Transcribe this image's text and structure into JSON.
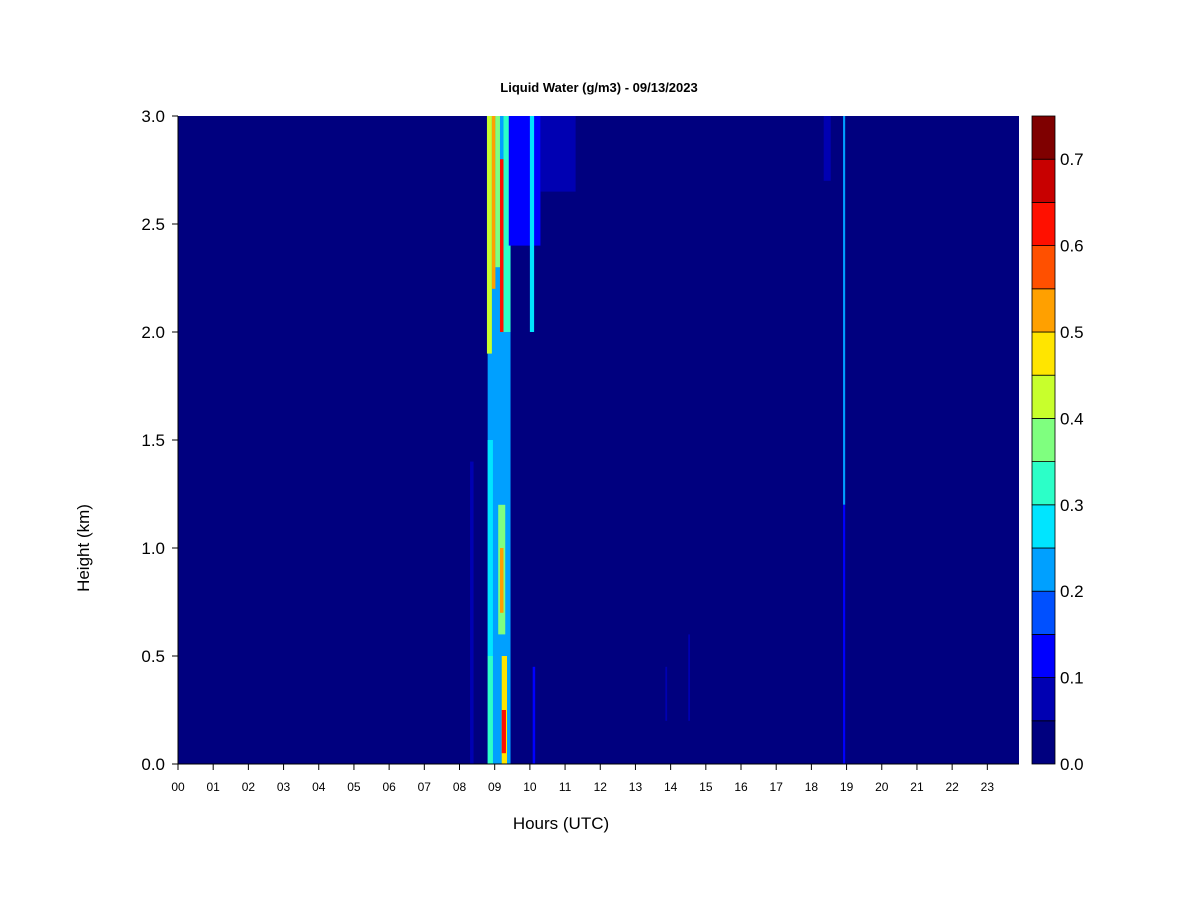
{
  "chart_data": {
    "type": "heatmap",
    "title": "Liquid Water (g/m3) - 09/13/2023",
    "xlabel": "Hours (UTC)",
    "ylabel": "Height (km)",
    "xlim": [
      0,
      23.9
    ],
    "ylim": [
      0,
      3.0
    ],
    "x_ticks": [
      {
        "value": 0,
        "label": "00"
      },
      {
        "value": 1,
        "label": "01"
      },
      {
        "value": 2,
        "label": "02"
      },
      {
        "value": 3,
        "label": "03"
      },
      {
        "value": 4,
        "label": "04"
      },
      {
        "value": 5,
        "label": "05"
      },
      {
        "value": 6,
        "label": "06"
      },
      {
        "value": 7,
        "label": "07"
      },
      {
        "value": 8,
        "label": "08"
      },
      {
        "value": 9,
        "label": "09"
      },
      {
        "value": 10,
        "label": "10"
      },
      {
        "value": 11,
        "label": "11"
      },
      {
        "value": 12,
        "label": "12"
      },
      {
        "value": 13,
        "label": "13"
      },
      {
        "value": 14,
        "label": "14"
      },
      {
        "value": 15,
        "label": "15"
      },
      {
        "value": 16,
        "label": "16"
      },
      {
        "value": 17,
        "label": "17"
      },
      {
        "value": 18,
        "label": "18"
      },
      {
        "value": 19,
        "label": "19"
      },
      {
        "value": 20,
        "label": "20"
      },
      {
        "value": 21,
        "label": "21"
      },
      {
        "value": 22,
        "label": "22"
      },
      {
        "value": 23,
        "label": "23"
      }
    ],
    "y_ticks": [
      {
        "value": 0.0,
        "label": "0.0"
      },
      {
        "value": 0.5,
        "label": "0.5"
      },
      {
        "value": 1.0,
        "label": "1.0"
      },
      {
        "value": 1.5,
        "label": "1.5"
      },
      {
        "value": 2.0,
        "label": "2.0"
      },
      {
        "value": 2.5,
        "label": "2.5"
      },
      {
        "value": 3.0,
        "label": "3.0"
      }
    ],
    "background_value": 0.0,
    "colorbar": {
      "min": 0.0,
      "max": 0.75,
      "levels": [
        0.0,
        0.05,
        0.1,
        0.15,
        0.2,
        0.25,
        0.3,
        0.35,
        0.4,
        0.45,
        0.5,
        0.55,
        0.6,
        0.65,
        0.7,
        0.75
      ],
      "colors": [
        "#00007f",
        "#0000b2",
        "#0000ff",
        "#0050ff",
        "#00a0ff",
        "#00e5ff",
        "#2cffc8",
        "#7fff7f",
        "#c8ff2c",
        "#ffe500",
        "#ffa000",
        "#ff5000",
        "#ff1000",
        "#c80000",
        "#7f0000"
      ],
      "tick_labels": [
        {
          "value": 0.0,
          "label": "0.0"
        },
        {
          "value": 0.1,
          "label": "0.1"
        },
        {
          "value": 0.2,
          "label": "0.2"
        },
        {
          "value": 0.3,
          "label": "0.3"
        },
        {
          "value": 0.4,
          "label": "0.4"
        },
        {
          "value": 0.5,
          "label": "0.5"
        },
        {
          "value": 0.6,
          "label": "0.6"
        },
        {
          "value": 0.7,
          "label": "0.7"
        }
      ]
    },
    "features": [
      {
        "x0": 8.8,
        "x1": 9.45,
        "y0": 0.0,
        "y1": 3.0,
        "value": 0.2
      },
      {
        "x0": 8.78,
        "x1": 8.92,
        "y0": 1.9,
        "y1": 3.0,
        "value": 0.42
      },
      {
        "x0": 8.92,
        "x1": 9.02,
        "y0": 2.2,
        "y1": 3.0,
        "value": 0.5
      },
      {
        "x0": 9.15,
        "x1": 9.25,
        "y0": 2.0,
        "y1": 2.8,
        "value": 0.62
      },
      {
        "x0": 9.02,
        "x1": 9.15,
        "y0": 2.3,
        "y1": 3.0,
        "value": 0.35
      },
      {
        "x0": 9.25,
        "x1": 9.45,
        "y0": 2.0,
        "y1": 3.0,
        "value": 0.3
      },
      {
        "x0": 9.4,
        "x1": 10.3,
        "y0": 2.4,
        "y1": 3.0,
        "value": 0.1
      },
      {
        "x0": 10.0,
        "x1": 10.12,
        "y0": 2.0,
        "y1": 3.0,
        "value": 0.25
      },
      {
        "x0": 10.3,
        "x1": 11.3,
        "y0": 2.65,
        "y1": 3.0,
        "value": 0.07
      },
      {
        "x0": 8.8,
        "x1": 8.95,
        "y0": 0.5,
        "y1": 1.5,
        "value": 0.25
      },
      {
        "x0": 9.1,
        "x1": 9.3,
        "y0": 0.6,
        "y1": 1.2,
        "value": 0.38
      },
      {
        "x0": 9.15,
        "x1": 9.25,
        "y0": 0.7,
        "y1": 1.0,
        "value": 0.52
      },
      {
        "x0": 8.8,
        "x1": 8.95,
        "y0": 0.0,
        "y1": 0.5,
        "value": 0.32
      },
      {
        "x0": 9.2,
        "x1": 9.35,
        "y0": 0.0,
        "y1": 0.5,
        "value": 0.45
      },
      {
        "x0": 9.2,
        "x1": 9.32,
        "y0": 0.05,
        "y1": 0.25,
        "value": 0.62
      },
      {
        "x0": 8.3,
        "x1": 8.4,
        "y0": 0.0,
        "y1": 1.4,
        "value": 0.07
      },
      {
        "x0": 10.08,
        "x1": 10.15,
        "y0": 0.0,
        "y1": 0.45,
        "value": 0.12
      },
      {
        "x0": 13.85,
        "x1": 13.9,
        "y0": 0.2,
        "y1": 0.45,
        "value": 0.07
      },
      {
        "x0": 14.5,
        "x1": 14.55,
        "y0": 0.2,
        "y1": 0.6,
        "value": 0.07
      },
      {
        "x0": 18.35,
        "x1": 18.55,
        "y0": 2.7,
        "y1": 3.0,
        "value": 0.07
      },
      {
        "x0": 18.9,
        "x1": 18.96,
        "y0": 1.2,
        "y1": 3.0,
        "value": 0.22
      },
      {
        "x0": 18.9,
        "x1": 18.96,
        "y0": 0.0,
        "y1": 1.2,
        "value": 0.12
      }
    ]
  }
}
